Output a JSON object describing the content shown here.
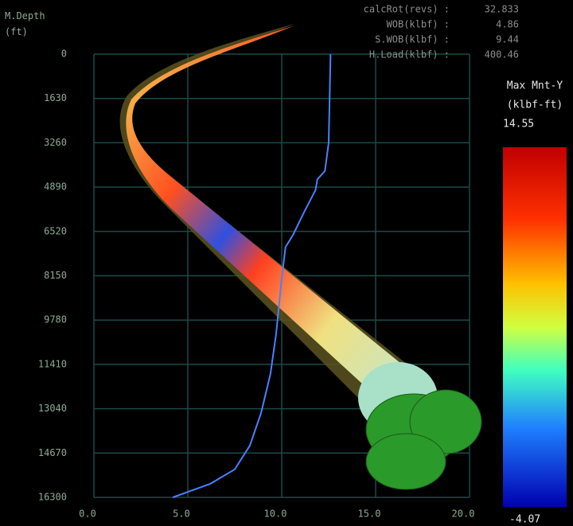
{
  "chart_data": {
    "type": "line",
    "y_label": "M.Depth\n(ft)",
    "ylim": [
      0,
      16300
    ],
    "yticks": [
      0,
      1630,
      3260,
      4890,
      6520,
      8150,
      9780,
      11410,
      13040,
      14670,
      16300
    ],
    "xlim": [
      0,
      20
    ],
    "xticks": [
      {
        "value": 0,
        "label": "0.0"
      },
      {
        "value": 5,
        "label": "5.0"
      },
      {
        "value": 10,
        "label": "10.0"
      },
      {
        "value": 15,
        "label": "15.0"
      },
      {
        "value": 20,
        "label": "20.0"
      }
    ],
    "grid": true,
    "series": [
      {
        "color": "#4a80ff",
        "x": [
          12.6,
          12.5,
          12.3,
          11.9,
          11.8,
          11.2,
          10.6,
          10.2,
          10.0,
          9.7,
          9.4,
          8.9,
          8.3,
          7.5,
          6.2,
          4.2
        ],
        "y": [
          0,
          3260,
          4300,
          4600,
          5000,
          5800,
          6650,
          7100,
          8250,
          10300,
          11760,
          13200,
          14400,
          15270,
          15800,
          16300
        ]
      }
    ]
  },
  "info": [
    {
      "label": "calcRot(revs) :",
      "value": "32.833"
    },
    {
      "label": "WOB(klbf) :",
      "value": "4.86"
    },
    {
      "label": "S.WOB(klbf) :",
      "value": "9.44"
    },
    {
      "label": "H.Load(klbf) :",
      "value": "400.46"
    }
  ],
  "colorbar": {
    "title": "Max Mnt-Y",
    "unit": "(klbf-ft)",
    "max": "14.55",
    "min": "-4.07"
  }
}
